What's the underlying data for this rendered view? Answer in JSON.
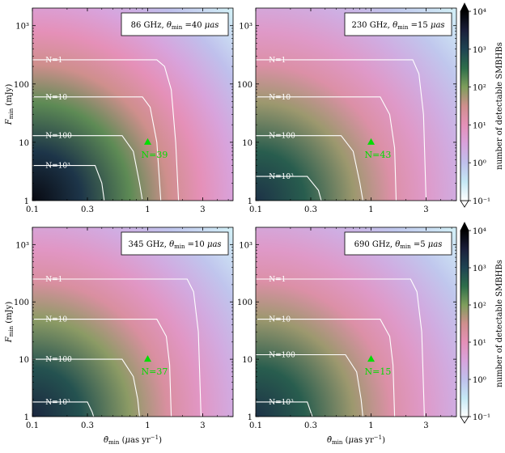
{
  "chart_data": [
    {
      "type": "heatmap",
      "annotation": {
        "freq": "86  GHz, ",
        "theta_sym": "θ",
        "theta_sub": "min",
        "theta_val": " =40 ",
        "unit": "μas"
      },
      "xlabel": "",
      "ylabel": "F_min (mJy)",
      "contour_labels": [
        "N=1",
        "N=10",
        "N=100",
        "N=10³"
      ],
      "marker": {
        "x": 1,
        "y": 10,
        "label": "N=39"
      },
      "contours": [
        [
          [
            0.1,
            260
          ],
          [
            1.2,
            260
          ],
          [
            1.4,
            200
          ],
          [
            1.6,
            80
          ],
          [
            1.75,
            10
          ],
          [
            1.85,
            1
          ]
        ],
        [
          [
            0.1,
            60
          ],
          [
            0.9,
            60
          ],
          [
            1.05,
            40
          ],
          [
            1.2,
            10
          ],
          [
            1.3,
            1
          ]
        ],
        [
          [
            0.1,
            13
          ],
          [
            0.6,
            13
          ],
          [
            0.75,
            7
          ],
          [
            0.85,
            2
          ],
          [
            0.9,
            1
          ]
        ],
        [
          [
            0.1,
            4
          ],
          [
            0.35,
            4
          ],
          [
            0.4,
            2
          ],
          [
            0.42,
            1
          ]
        ]
      ]
    },
    {
      "type": "heatmap",
      "annotation": {
        "freq": "230  GHz, ",
        "theta_sym": "θ",
        "theta_sub": "min",
        "theta_val": " =15 ",
        "unit": "μas"
      },
      "xlabel": "",
      "ylabel": "",
      "contour_labels": [
        "N=1",
        "N=10",
        "N=100",
        "N=10³"
      ],
      "marker": {
        "x": 1,
        "y": 10,
        "label": "N=43"
      },
      "contours": [
        [
          [
            0.1,
            260
          ],
          [
            2.3,
            260
          ],
          [
            2.6,
            150
          ],
          [
            2.85,
            30
          ],
          [
            3.0,
            1
          ]
        ],
        [
          [
            0.1,
            60
          ],
          [
            1.2,
            60
          ],
          [
            1.45,
            30
          ],
          [
            1.6,
            8
          ],
          [
            1.65,
            1
          ]
        ],
        [
          [
            0.1,
            13
          ],
          [
            0.55,
            13
          ],
          [
            0.7,
            7
          ],
          [
            0.8,
            2
          ],
          [
            0.85,
            1
          ]
        ],
        [
          [
            0.1,
            2.6
          ],
          [
            0.28,
            2.6
          ],
          [
            0.35,
            1.5
          ],
          [
            0.37,
            1
          ]
        ]
      ]
    },
    {
      "type": "heatmap",
      "annotation": {
        "freq": "345  GHz, ",
        "theta_sym": "θ",
        "theta_sub": "min",
        "theta_val": " =10 ",
        "unit": "μas"
      },
      "xlabel": "θ̇_min (μas yr⁻¹)",
      "ylabel": "F_min (mJy)",
      "contour_labels": [
        "N=1",
        "N=10",
        "N=100",
        "N=10³"
      ],
      "marker": {
        "x": 1,
        "y": 10,
        "label": "N=37"
      },
      "contours": [
        [
          [
            0.1,
            250
          ],
          [
            2.2,
            250
          ],
          [
            2.5,
            150
          ],
          [
            2.75,
            30
          ],
          [
            2.9,
            1
          ]
        ],
        [
          [
            0.1,
            50
          ],
          [
            1.2,
            50
          ],
          [
            1.45,
            25
          ],
          [
            1.55,
            8
          ],
          [
            1.6,
            1
          ]
        ],
        [
          [
            0.1,
            10
          ],
          [
            0.6,
            10
          ],
          [
            0.75,
            5
          ],
          [
            0.82,
            2
          ],
          [
            0.85,
            1
          ]
        ],
        [
          [
            0.1,
            1.8
          ],
          [
            0.3,
            1.8
          ],
          [
            0.33,
            1.2
          ],
          [
            0.34,
            1
          ]
        ]
      ]
    },
    {
      "type": "heatmap",
      "annotation": {
        "freq": "690  GHz, ",
        "theta_sym": "θ",
        "theta_sub": "min",
        "theta_val": " =5  ",
        "unit": "μas"
      },
      "xlabel": "θ̇_min (μas yr⁻¹)",
      "ylabel": "",
      "contour_labels": [
        "N=1",
        "N=10",
        "N=100",
        "N=10³"
      ],
      "marker": {
        "x": 1,
        "y": 10,
        "label": "N=15"
      },
      "contours": [
        [
          [
            0.1,
            250
          ],
          [
            2.2,
            250
          ],
          [
            2.5,
            150
          ],
          [
            2.75,
            30
          ],
          [
            2.9,
            1
          ]
        ],
        [
          [
            0.1,
            50
          ],
          [
            1.2,
            50
          ],
          [
            1.45,
            25
          ],
          [
            1.55,
            8
          ],
          [
            1.6,
            1
          ]
        ],
        [
          [
            0.1,
            12
          ],
          [
            0.6,
            12
          ],
          [
            0.75,
            6
          ],
          [
            0.82,
            2
          ],
          [
            0.85,
            1
          ]
        ],
        [
          [
            0.1,
            1.8
          ],
          [
            0.28,
            1.8
          ],
          [
            0.3,
            1.2
          ],
          [
            0.31,
            1
          ]
        ]
      ]
    }
  ],
  "axes": {
    "xlim": [
      0.1,
      5.5
    ],
    "ylim": [
      1,
      2000
    ],
    "xscale": "log",
    "yscale": "log",
    "xticks": [
      0.1,
      0.3,
      1,
      3
    ],
    "xtick_labels": [
      "0.1",
      "0.3",
      "1",
      "3"
    ],
    "yticks": [
      1,
      10,
      100,
      1000
    ],
    "ytick_labels": [
      "1",
      "10",
      "100",
      "10³"
    ]
  },
  "colorbar": {
    "label": "number of detectable SMBHBs",
    "range": [
      0.1,
      10000
    ],
    "scale": "log",
    "ticks": [
      0.1,
      1,
      10,
      100,
      1000,
      10000
    ],
    "tick_labels": [
      "10⁻¹",
      "10⁰",
      "10¹",
      "10²",
      "10³",
      "10⁴"
    ],
    "colormap": [
      "#ffffff",
      "#c5e8f4",
      "#bfc0ec",
      "#d8a3dc",
      "#e590b8",
      "#cf8f8d",
      "#7e9e5c",
      "#2e6e4a",
      "#1f4453",
      "#1a1f3a",
      "#000000"
    ]
  }
}
